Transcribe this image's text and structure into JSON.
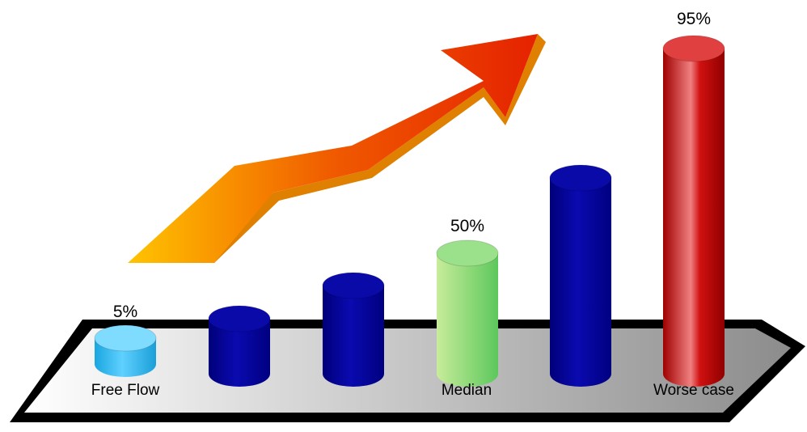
{
  "labels": {
    "low": "5%",
    "mid": "50%",
    "high": "95%"
  },
  "captions": {
    "low": "Free Flow",
    "mid": "Median",
    "high": "Worse case"
  }
}
